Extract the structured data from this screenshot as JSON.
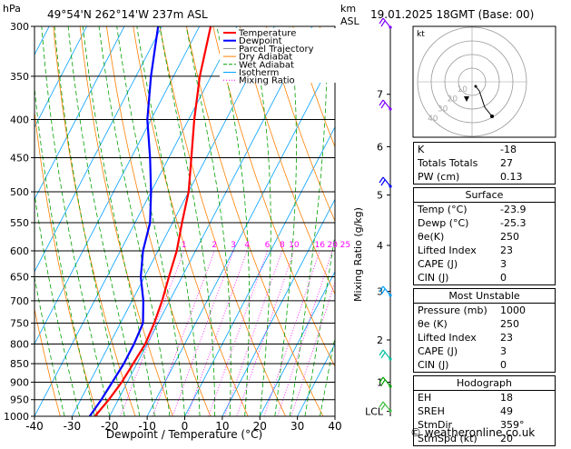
{
  "header": {
    "location": "49°54'N  262°14'W  237m  ASL",
    "datetime": "19.01.2025  18GMT  (Base: 00)",
    "pressure_unit": "hPa",
    "height_unit": "km",
    "height_unit2": "ASL"
  },
  "chart_data": {
    "type": "skew-t",
    "xlabel": "Dewpoint / Temperature (°C)",
    "ylabel_right": "Mixing Ratio (g/kg)",
    "x_ticks": [
      -40,
      -30,
      -20,
      -10,
      0,
      10,
      20,
      30,
      40
    ],
    "pressure_levels": [
      300,
      350,
      400,
      450,
      500,
      550,
      600,
      650,
      700,
      750,
      800,
      850,
      900,
      950,
      1000
    ],
    "height_ticks_km": [
      {
        "label": "7",
        "p": 370
      },
      {
        "label": "6",
        "p": 435
      },
      {
        "label": "5",
        "p": 505
      },
      {
        "label": "4",
        "p": 590
      },
      {
        "label": "3",
        "p": 680
      },
      {
        "label": "2",
        "p": 790
      },
      {
        "label": "1",
        "p": 900
      },
      {
        "label": "LCL",
        "p": 985
      }
    ],
    "mixing_ratio_labels": [
      "1",
      "2",
      "3",
      "4",
      "6",
      "8",
      "10",
      "16",
      "20",
      "25"
    ],
    "legend": [
      {
        "name": "Temperature",
        "color": "#ff0000"
      },
      {
        "name": "Dewpoint",
        "color": "#0000ff"
      },
      {
        "name": "Parcel Trajectory",
        "color": "#888888"
      },
      {
        "name": "Dry Adiabat",
        "color": "#ff8000"
      },
      {
        "name": "Wet Adiabat",
        "color": "#00a000"
      },
      {
        "name": "Isotherm",
        "color": "#00a0ff"
      },
      {
        "name": "Mixing Ratio",
        "color": "#ff00ff"
      }
    ],
    "temperature": [
      [
        1000,
        -23.9
      ],
      [
        950,
        -22.5
      ],
      [
        900,
        -21.5
      ],
      [
        850,
        -21
      ],
      [
        800,
        -20.5
      ],
      [
        750,
        -21
      ],
      [
        700,
        -22
      ],
      [
        650,
        -23.5
      ],
      [
        600,
        -25
      ],
      [
        550,
        -27.5
      ],
      [
        500,
        -30
      ],
      [
        450,
        -34
      ],
      [
        400,
        -38.5
      ],
      [
        350,
        -43
      ],
      [
        300,
        -47
      ]
    ],
    "dewpoint": [
      [
        1000,
        -25.3
      ],
      [
        950,
        -24.5
      ],
      [
        900,
        -24
      ],
      [
        850,
        -23.5
      ],
      [
        800,
        -23.5
      ],
      [
        750,
        -24
      ],
      [
        700,
        -27
      ],
      [
        650,
        -31
      ],
      [
        600,
        -34
      ],
      [
        550,
        -36
      ],
      [
        500,
        -40
      ],
      [
        450,
        -45
      ],
      [
        400,
        -51
      ],
      [
        350,
        -56
      ],
      [
        300,
        -61
      ]
    ]
  },
  "hodograph": {
    "label": "kt",
    "ring_labels": [
      "10",
      "20",
      "30",
      "40"
    ]
  },
  "indices": {
    "rows": [
      {
        "label": "K",
        "value": "-18"
      },
      {
        "label": "Totals Totals",
        "value": "27"
      },
      {
        "label": "PW (cm)",
        "value": "0.13"
      }
    ]
  },
  "surface": {
    "title": "Surface",
    "rows": [
      {
        "label": "Temp (°C)",
        "value": "-23.9"
      },
      {
        "label": "Dewp (°C)",
        "value": "-25.3"
      },
      {
        "label": "θe(K)",
        "value": "250"
      },
      {
        "label": "Lifted Index",
        "value": "23"
      },
      {
        "label": "CAPE (J)",
        "value": "3"
      },
      {
        "label": "CIN (J)",
        "value": "0"
      }
    ]
  },
  "most_unstable": {
    "title": "Most Unstable",
    "rows": [
      {
        "label": "Pressure (mb)",
        "value": "1000"
      },
      {
        "label": "θe (K)",
        "value": "250"
      },
      {
        "label": "Lifted Index",
        "value": "23"
      },
      {
        "label": "CAPE (J)",
        "value": "3"
      },
      {
        "label": "CIN (J)",
        "value": "0"
      }
    ]
  },
  "hodograph_table": {
    "title": "Hodograph",
    "rows": [
      {
        "label": "EH",
        "value": "18"
      },
      {
        "label": "SREH",
        "value": "49"
      },
      {
        "label": "StmDir",
        "value": "359°"
      },
      {
        "label": "StmSpd (kt)",
        "value": "20"
      }
    ]
  },
  "footer": {
    "copyright": "© weatheronline.co.uk"
  }
}
